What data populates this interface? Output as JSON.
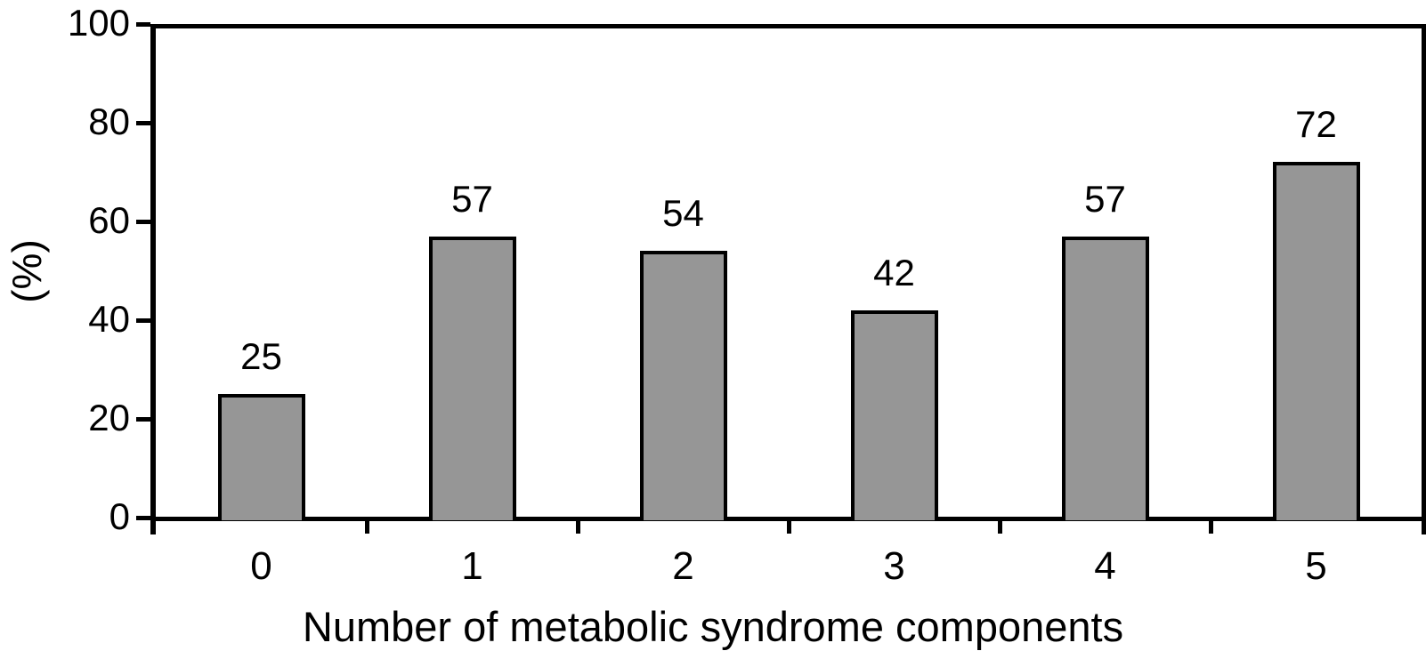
{
  "chart_data": {
    "type": "bar",
    "categories": [
      "0",
      "1",
      "2",
      "3",
      "4",
      "5"
    ],
    "values": [
      25,
      57,
      54,
      42,
      57,
      72
    ],
    "bar_labels": [
      "25",
      "57",
      "54",
      "42",
      "57",
      "72"
    ],
    "title": "",
    "xlabel": "Number of metabolic syndrome components",
    "ylabel": "(%)",
    "ylim": [
      0,
      100
    ],
    "yticks": [
      0,
      20,
      40,
      60,
      80,
      100
    ],
    "grid": false,
    "legend": null,
    "bar_color": "#969696",
    "bar_border_color": "#000000",
    "axis_color": "#000000",
    "background_color": "#ffffff"
  }
}
